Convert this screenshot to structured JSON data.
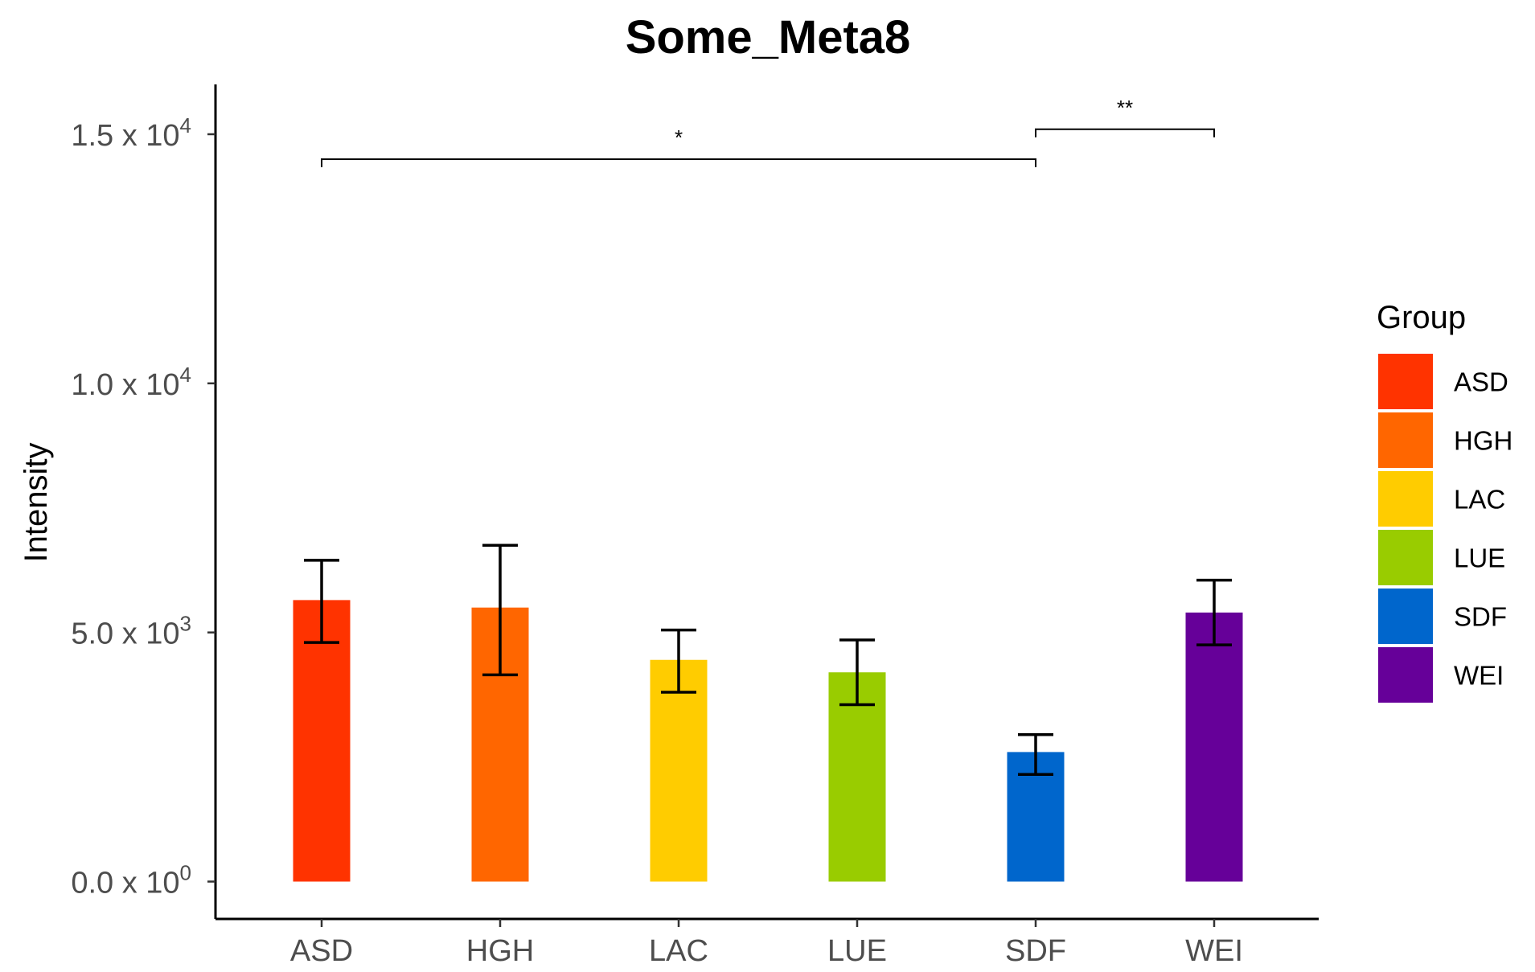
{
  "chart_data": {
    "type": "bar",
    "title": "Some_Meta8",
    "ylabel": "Intensity",
    "xlabel": "",
    "categories": [
      "ASD",
      "HGH",
      "LAC",
      "LUE",
      "SDF",
      "WEI"
    ],
    "values": [
      5650,
      5500,
      4450,
      4200,
      2600,
      5400
    ],
    "error_low": [
      4800,
      4150,
      3800,
      3550,
      2150,
      4750
    ],
    "error_high": [
      6450,
      6750,
      5050,
      4850,
      2950,
      6050
    ],
    "colors": [
      "#FF3300",
      "#FF6600",
      "#FFCC00",
      "#99CC00",
      "#0066CC",
      "#660099"
    ],
    "ylim": [
      -750,
      16000
    ],
    "yticks": [
      {
        "value": 0,
        "mantissa": "0.0",
        "exponent": "0"
      },
      {
        "value": 5000,
        "mantissa": "5.0",
        "exponent": "3"
      },
      {
        "value": 10000,
        "mantissa": "1.0",
        "exponent": "4"
      },
      {
        "value": 15000,
        "mantissa": "1.5",
        "exponent": "4"
      }
    ],
    "tick_times": "x 10",
    "significance": [
      {
        "from": "ASD",
        "to": "SDF",
        "label": "*",
        "y": 14500
      },
      {
        "from": "SDF",
        "to": "WEI",
        "label": "**",
        "y": 15100
      }
    ],
    "legend": {
      "title": "Group",
      "position": "right"
    },
    "grid": false
  }
}
